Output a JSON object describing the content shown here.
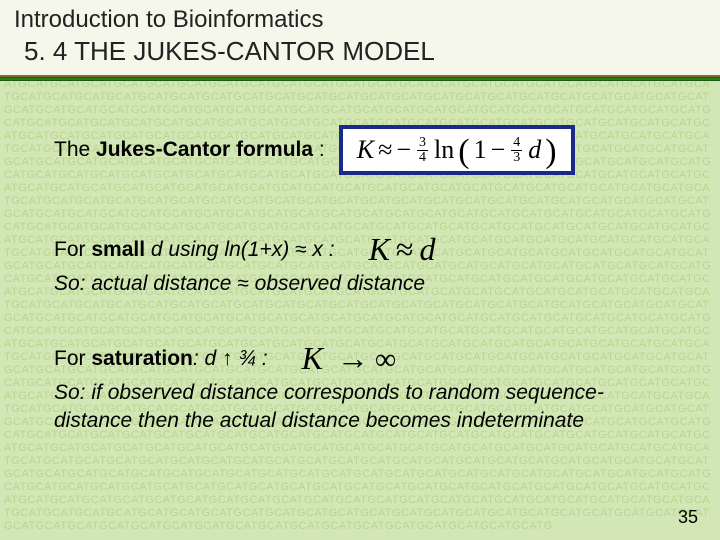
{
  "header": {
    "line1": "Introduction to Bioinformatics",
    "line2": "5. 4 THE JUKES-CANTOR MODEL"
  },
  "colors": {
    "page_bg": "#d2e7b5",
    "bg_text": "#b8d690",
    "header_bg": "#f5f7ea",
    "rule_green": "#2e7d1f",
    "formula_border": "#1a2a8a",
    "text": "#000000"
  },
  "formula": {
    "label": "The ",
    "label_bold": "Jukes-Cantor formula",
    "label_tail": " :",
    "K": "K",
    "approx": "≈",
    "minus": "−",
    "frac1_num": "3",
    "frac1_den": "4",
    "ln": "ln",
    "lparen": "(",
    "one": "1",
    "minus2": "−",
    "frac2_num": "4",
    "frac2_den": "3",
    "d": "d",
    "rparen": ")"
  },
  "small": {
    "pre": "For ",
    "bold": "small",
    "mid": " d using ln(1+x) ≈ x :",
    "formula_K": "K",
    "formula_approx": "≈",
    "formula_d": "d",
    "so": "So: actual distance ≈ observed distance"
  },
  "saturation": {
    "pre": "For ",
    "bold": "saturation",
    "mid": ": d ↑ ¾ :",
    "formula_K": "K",
    "arrow": "→",
    "inf": "∞",
    "so1": "So: if observed distance corresponds to random sequence-",
    "so2": "distance then the actual distance becomes indeterminate"
  },
  "page_number": "35",
  "bg_seq": "ATCAAGATTCCATTCATGTTTCCATCGACCTGCACTGCCTGTACCATGGCGTCCAGCTGAATGAACTCGACTTGACGATCGCAGCGTGCTAGCTAGCTAGCTAGCATGCATGCATGCATGCATGCATGCATGCATGCATGCATGCATGCATGCATGCATGCATGCATGCATGCATGCATGCATGCATGCATGCATGCATGCATGCATGCATGCATGCATGCATGCATGCATGCATGCATGCATGCATGCATGCATGCATGCATGCATGCATGCATGCATGCATGCATGCATGCATGCATGCATGCATGCATGCATGCATGCATGCATGCATGCATGCATGCATGCATGCATGCATGCATGCATGCATGCATGCATGCATGCATGCATGCATGCATGCATGCATGCATGCATGCATGCATGCATGCATGCATGCATGCATGCATGCATGCATGCATGCATGCATGCATGCATGCATGCATGCATGCATGCATGCATGCATGCATGCATGCATGCATGCATGCATGCATGCATGCATGCATGCATGCATGCATGCATGCATGCATGCATGCATGCATGCATGCATGCATGCATGCATGCATGCATGCATGCATGCATGCATGCATGCATGCATGCATGCATGCATGCATGCATGCATGCATGCATGCATGCATGCATGCATGCATGCATGCATGCATGCATGCATGCATGCATGCATGCATGCATGCATGCATGCATGCATGCATGCATGCATGCATGCATGCATGCATGCATGCATGCATGCATGCATGCATGCATGCATGCATGCATGCATGCATGCATGCATGCATGCATGCATGCATGCATGCATGCATGCATGCATGCATGCATGCATGCATGCATGCATGCATGCATGCATGCATGCATGCATGCATGCATGCATGCATGCATGCATGCATGCATGCATGCATGCATGCATGCATGCATGCATGCATGCATGCATGCATGCATGCATGCATGCATGCATGCATGCATGCATGCATGCATGCATGCATGCATGCATGCATGCATGCATGCATGCATGCATGCATGCATGCATGCATGCATGCATGCATGCATGCATGCATGCATGCATGCATGCATGCATGCATGCATGCATGCATGCATGCATGCATGCATGCATGCATGCATGCATGCATGCATGCATGCATGCATGCATGCATGCATGCATGCATGCATGCATGCATGCATGCATGCATGCATGCATGCATGCATGCATGCATGCATGCATGCATGCATGCATGCATGCATGCATGCATGCATGCATGCATGCATGCATGCATGCATGCATGCATGCATGCATGCATGCATGCATGCATGCATGCATGCATGCATGCATGCATGCATGCATGCATGCATGCATGCATGCATGCATGCATGCATGCATGCATGCATGCATGCATGCATGCATGCATGCATGCATGCATGCATGCATGCATGCATGCATGCATGCATGCATGCATGCATGCATGCATGCATGCATGCATGCATGCATGCATGCATGCATGCATGCATGCATGCATGCATGCATGCATGCATGCATGCATGCATGCATGCATGCATGCATGCATGCATGCATGCATGCATGCATGCATGCATGCATGCATGCATGCATGCATGCATGCATGCATGCATGCATGCATGCATGCATGCATGCATGCATGCATGCATGCATGCATGCATGCATGCATGCATGCATGCATGCATGCATGCATGCATGCATGCATGCATGCATGCATGCATGCATGCATGCATGCATGCATGCATGCATGCATGCATGCATGCATGCATGCATGCATGCATGCATGCATGCATGCATGCATGCATGCATGCATGCATGCATGCATGCATGCATGCATGCATGCATGCATGCATGCATGCATGCATGCATGCATGCATGCATGCATGCATGCATGCATGCATGCATGCATGCATGCATGCATGCATGCATGCATGCATGCATGCATGCATGCATGCATGCATGCATGCATGCATGCATGCATGCATGCATGCATGCATGCATGCATGCATGCATGCATGCATGCATGCATGCATGCATGCATGCATGCATGCATGCATGCATGCATGCATGCATGCATGCATGCATGCATGCATGCATGCATGCATGCATGCATGCATGCATGCATGCATGCATGCATGCATGCATGCATGCATGCATGCATGCATGCATGCATGCATGCATGCATGCATGCATGCATGCATGCATGCATGCATGCATGCATGCATGCATGCATGCATGCATGCATGCATGCATGCATGCATGCATGCATGCATGCATGCATGCATGCATGCATGCATGCATGCATGCATGCATGCATGCATGCATGCATGCATGCATGCATGCATGCATGCATGCATGCATGCATGCATGCATGCATGCATGCATGCATGCATGCATGCATGCATGCATGCATGCATGCATGCATGCATGCATGCATGCATGCATGCATGCATGCATGCATGCATGCATGCATGCATGCATGCATGCATGCATGCATGCATGCATGCATGCATGCATGCATGCATGCATGCATGCATGCATGCATGCATGCATGCATGCATGCATGCATGCATGCATGCATGCATGCATGCATGCATGCATGCATGCATGCATGCATGCATGCATGCATGCATGCATGCATGCATGCATGCATGCATGCATGCATGCATGCATGCATGCATGCATGCATGCATGCATGCATGCATGCATGCATGCATGCATGCATGCATGCATGCATGCATGCATGCATGCATGCATGCATGCATGCATGCATGCATGCATGCATGCATGCATGCATGCATGCATGCATGCATGCATGCATGCATGCATGCATGCATGCATGCATGCATGCATGCATGCATGCATGCATGCATGCATGCATGCATGCATGCATGCATGCATGCATGCATGCATGCATGCATGCATGCATGCATGCATGCATGCATGCATGCATGCATGCATGCATGCATGCATGCATGCATGCATGCATGCATGCATGCATGCATGCATGCATGCATGCATGCATGCATGCATGCATGCATGCATGCATGCATGCATGCATGCATGCATGCATGCATGCATGCATGCATGCATGCATGCATGCATGCATGCATGCATGCATGCATGCATGCATGCATGCATGCATGCATGCATGCATGCATGCATGCATGCATGCATGCATGCATGCATGCATGCATGCATGCATGCATGCATGCATGCATGCATGCATGCATGCATGCATGCATGCATGCATGCATGCATGCATGCATGCATGCATGCATGCATGCATGCATGCATGCATGCATGCATGCATGCATGCATGCATGCATGCATGCATGCATGCATGCATGCATGCATGCATGCATGCATGCATGCATGCATGCATGCATGCATGCATGCATGCATGCATGCATGCATGCATGCATGCATGCATGCATGCATGCATGCATGCATGCATGCATGCATGCATGCATGCATGCATGCATGCATGCATGCATGCATGCATGCATGCATGCATGCATGCATGCATGCATGCATGCATGCATGCATGCATGCATGCATGCATGCATG"
}
